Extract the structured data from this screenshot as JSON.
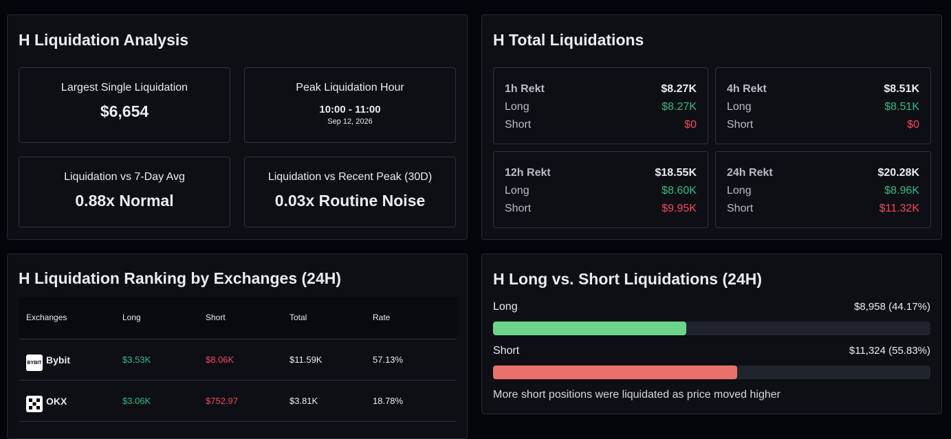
{
  "analysis": {
    "title": "H Liquidation Analysis",
    "largest": {
      "label": "Largest Single Liquidation",
      "value": "$6,654"
    },
    "peak_hour": {
      "label": "Peak Liquidation Hour",
      "value": "10:00 - 11:00",
      "date": "Sep 12, 2026"
    },
    "vs_7day": {
      "label": "Liquidation vs 7-Day Avg",
      "value": "0.88x Normal"
    },
    "vs_peak": {
      "label": "Liquidation vs Recent Peak (30D)",
      "value": "0.03x Routine Noise"
    }
  },
  "totals": {
    "title": "H Total Liquidations",
    "long_label": "Long",
    "short_label": "Short",
    "cards": [
      {
        "label": "1h Rekt",
        "total": "$8.27K",
        "long": "$8.27K",
        "short": "$0"
      },
      {
        "label": "4h Rekt",
        "total": "$8.51K",
        "long": "$8.51K",
        "short": "$0"
      },
      {
        "label": "12h Rekt",
        "total": "$18.55K",
        "long": "$8.60K",
        "short": "$9.95K"
      },
      {
        "label": "24h Rekt",
        "total": "$20.28K",
        "long": "$8.96K",
        "short": "$11.32K"
      }
    ]
  },
  "ranking": {
    "title": "H Liquidation Ranking by Exchanges (24H)",
    "columns": [
      "Exchanges",
      "Long",
      "Short",
      "Total",
      "Rate"
    ],
    "rows": [
      {
        "exchange": "Bybit",
        "logo": "BYBIT",
        "long": "$3.53K",
        "short": "$8.06K",
        "total": "$11.59K",
        "rate": "57.13%"
      },
      {
        "exchange": "OKX",
        "logo": "okx-logo",
        "long": "$3.06K",
        "short": "$752.97",
        "total": "$3.81K",
        "rate": "18.78%"
      }
    ]
  },
  "long_short": {
    "title": "H Long vs. Short Liquidations (24H)",
    "long": {
      "label": "Long",
      "value": "$8,958 (44.17%)",
      "fraction": 0.4417,
      "color": "#6bd68b"
    },
    "short": {
      "label": "Short",
      "value": "$11,324 (55.83%)",
      "fraction": 0.5583,
      "color": "#e8726a"
    },
    "note": "More short positions were liquidated as price moved higher"
  }
}
